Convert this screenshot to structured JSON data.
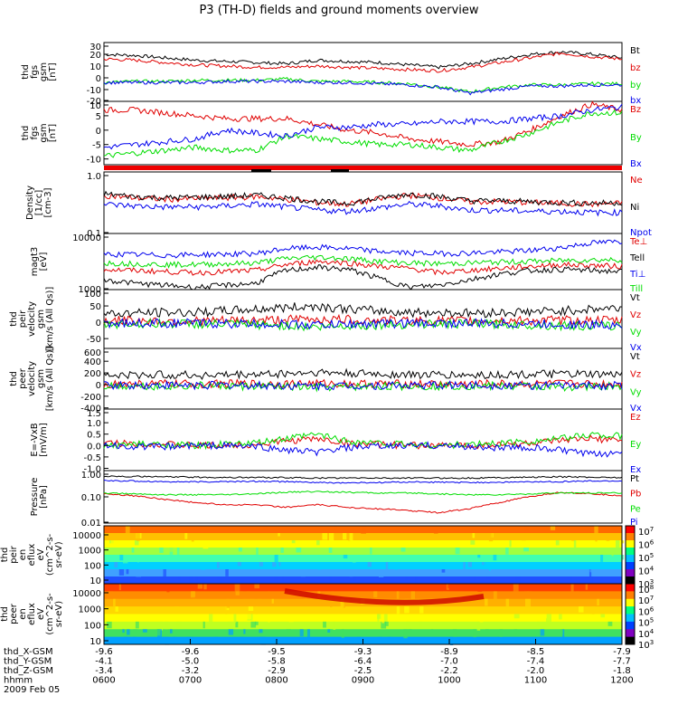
{
  "title": "P3 (TH-D) fields and ground moments overview",
  "colors": {
    "black": "#000000",
    "red": "#e00000",
    "green": "#00dd00",
    "blue": "#0000ee"
  },
  "chart_data": [
    {
      "type": "line",
      "id": "fgs_gsm_overview",
      "ylabel": [
        "thd",
        "fgs",
        "gsm",
        "[nT]"
      ],
      "yticks": [
        "30",
        "20",
        "10",
        "0",
        "-10",
        "-20"
      ],
      "ylim": [
        -20,
        30
      ],
      "series": [
        {
          "name": "Bt",
          "color": "black",
          "values": [
            20,
            19,
            17,
            15,
            14,
            13,
            12,
            15,
            14,
            13,
            11,
            9,
            12,
            16,
            20,
            22,
            20,
            17
          ]
        },
        {
          "name": "bz",
          "color": "red",
          "values": [
            16,
            15,
            13,
            11,
            10,
            9,
            9,
            10,
            9,
            8,
            7,
            6,
            9,
            13,
            17,
            21,
            18,
            16
          ]
        },
        {
          "name": "by",
          "color": "green",
          "values": [
            -4,
            -3,
            -3,
            -2,
            -2,
            -2,
            -1,
            -3,
            -3,
            -4,
            -5,
            -8,
            -12,
            -8,
            -6,
            -6,
            -5,
            -5
          ]
        },
        {
          "name": "bx",
          "color": "blue",
          "values": [
            -4,
            -4,
            -4,
            -4,
            -3,
            -3,
            -3,
            -4,
            -4,
            -5,
            -6,
            -8,
            -13,
            -10,
            -7,
            -7,
            -6,
            -6
          ]
        }
      ]
    },
    {
      "type": "line",
      "id": "fgs_gsm_zoom",
      "ylabel": [
        "thd",
        "fgs",
        "gsm",
        "[nT]"
      ],
      "yticks": [
        "10",
        "5",
        "0",
        "-5",
        "-10"
      ],
      "ylim": [
        -12,
        10
      ],
      "series": [
        {
          "name": "Bz",
          "color": "red",
          "values": [
            7,
            7,
            6,
            5,
            4,
            4,
            4,
            2,
            0,
            -1,
            -3,
            -4,
            -5,
            -4,
            0,
            5,
            9,
            7
          ]
        },
        {
          "name": "By",
          "color": "green",
          "values": [
            -9,
            -8,
            -7,
            -6,
            -7,
            -7,
            -2,
            -3,
            -4,
            -5,
            -5,
            -6,
            -7,
            -4,
            -1,
            3,
            6,
            6
          ]
        },
        {
          "name": "Bx",
          "color": "blue",
          "values": [
            -6,
            -5,
            -4,
            -3,
            0,
            -1,
            -2,
            1,
            1,
            2,
            2,
            3,
            3,
            3,
            4,
            5,
            7,
            8
          ]
        }
      ]
    },
    {
      "type": "line",
      "id": "density",
      "log": true,
      "ylabel": [
        "Density",
        "[1/cc]",
        "[cm-3]"
      ],
      "yticks": [
        "1.0",
        "0.1"
      ],
      "ylim": [
        0.1,
        1.0
      ],
      "series": [
        {
          "name": "Ne",
          "color": "red",
          "values": [
            0.42,
            0.38,
            0.36,
            0.37,
            0.38,
            0.4,
            0.36,
            0.32,
            0.3,
            0.36,
            0.42,
            0.38,
            0.33,
            0.33,
            0.32,
            0.31,
            0.3,
            0.31
          ]
        },
        {
          "name": "Ni",
          "color": "black",
          "values": [
            0.44,
            0.4,
            0.38,
            0.39,
            0.4,
            0.42,
            0.38,
            0.33,
            0.31,
            0.37,
            0.44,
            0.4,
            0.34,
            0.34,
            0.33,
            0.32,
            0.31,
            0.32
          ]
        },
        {
          "name": "Npot",
          "color": "blue",
          "values": [
            0.3,
            0.28,
            0.27,
            0.27,
            0.28,
            0.3,
            0.27,
            0.24,
            0.23,
            0.26,
            0.3,
            0.28,
            0.24,
            0.24,
            0.23,
            0.23,
            0.22,
            0.22
          ]
        }
      ]
    },
    {
      "type": "line",
      "id": "magt3",
      "log": true,
      "ylabel": [
        "magt3",
        "[eV]"
      ],
      "yticks": [
        "10000",
        "1000"
      ],
      "ylim": [
        1000,
        10000
      ],
      "series": [
        {
          "name": "Te⊥",
          "color": "red",
          "values": [
            2300,
            2200,
            2100,
            2000,
            2100,
            2200,
            2800,
            3200,
            3000,
            2600,
            2400,
            2000,
            2200,
            2400,
            2600,
            2800,
            2700,
            2600
          ]
        },
        {
          "name": "Tell",
          "color": "black",
          "values": [
            1500,
            1300,
            1200,
            1100,
            1200,
            1300,
            2200,
            2500,
            2300,
            1600,
            1100,
            1200,
            1500,
            1900,
            2200,
            2300,
            2200,
            2100
          ]
        },
        {
          "name": "Ti⊥",
          "color": "blue",
          "values": [
            4300,
            4200,
            4100,
            4200,
            4300,
            4400,
            5400,
            5700,
            5400,
            4800,
            4500,
            4400,
            4500,
            4700,
            5000,
            5600,
            6800,
            7200
          ]
        },
        {
          "name": "Till",
          "color": "green",
          "values": [
            3000,
            2900,
            2800,
            2800,
            2900,
            3000,
            3600,
            3800,
            3600,
            3200,
            3000,
            2900,
            3000,
            3100,
            3200,
            3300,
            3400,
            3400
          ]
        }
      ]
    },
    {
      "type": "line",
      "id": "peir_velocity",
      "ylabel": [
        "thd",
        "peir",
        "velocity",
        "gsm",
        "[km/s (All Qs)]"
      ],
      "yticks": [
        "100",
        "50",
        "0",
        "-50"
      ],
      "ylim": [
        -80,
        100
      ],
      "series": [
        {
          "name": "Vt",
          "color": "black",
          "values": [
            25,
            28,
            30,
            30,
            35,
            40,
            45,
            50,
            40,
            35,
            30,
            30,
            28,
            30,
            32,
            35,
            40,
            45
          ]
        },
        {
          "name": "Vz",
          "color": "red",
          "values": [
            5,
            5,
            4,
            4,
            5,
            6,
            8,
            10,
            8,
            6,
            5,
            5,
            4,
            5,
            5,
            6,
            6,
            5
          ]
        },
        {
          "name": "Vy",
          "color": "green",
          "values": [
            -5,
            -5,
            -4,
            -5,
            -6,
            -8,
            -10,
            -15,
            -10,
            -8,
            -6,
            -5,
            -5,
            -6,
            -8,
            -10,
            -12,
            -10
          ]
        },
        {
          "name": "Vx",
          "color": "blue",
          "values": [
            -2,
            -2,
            -3,
            -3,
            -4,
            -5,
            -6,
            -8,
            -6,
            -4,
            -3,
            -3,
            -3,
            -4,
            -5,
            -6,
            -8,
            -6
          ]
        }
      ]
    },
    {
      "type": "line",
      "id": "peer_velocity",
      "ylabel": [
        "thd",
        "peer",
        "velocity",
        "gsm",
        "[km/s (All Qs)]"
      ],
      "yticks": [
        "600",
        "400",
        "200",
        "0",
        "-200",
        "-400"
      ],
      "ylim": [
        -420,
        620
      ],
      "series": [
        {
          "name": "Vt",
          "color": "black",
          "values": [
            150,
            160,
            170,
            160,
            165,
            175,
            190,
            210,
            190,
            180,
            170,
            165,
            160,
            170,
            175,
            180,
            170,
            165
          ]
        },
        {
          "name": "Vz",
          "color": "red",
          "values": [
            10,
            10,
            12,
            10,
            12,
            14,
            16,
            18,
            14,
            12,
            10,
            10,
            10,
            12,
            12,
            14,
            12,
            10
          ]
        },
        {
          "name": "Vy",
          "color": "green",
          "values": [
            -20,
            -20,
            -25,
            -20,
            -25,
            -30,
            -40,
            -50,
            -40,
            -30,
            -25,
            -25,
            -20,
            -25,
            -30,
            -40,
            -35,
            -30
          ]
        },
        {
          "name": "Vx",
          "color": "blue",
          "values": [
            -10,
            -10,
            -12,
            -10,
            -12,
            -15,
            -20,
            -25,
            -20,
            -15,
            -12,
            -12,
            -10,
            -12,
            -15,
            -20,
            -18,
            -15
          ]
        }
      ]
    },
    {
      "type": "line",
      "id": "efield",
      "ylabel": [
        "E=-VxB",
        "[mV/m]"
      ],
      "yticks": [
        "1.5",
        "1.0",
        "0.5",
        "0.0",
        "-0.5",
        "-1.0"
      ],
      "ylim": [
        -1.1,
        1.6
      ],
      "series": [
        {
          "name": "Ez",
          "color": "red",
          "values": [
            0.1,
            0.1,
            0.05,
            0.0,
            0.0,
            0.05,
            0.2,
            0.3,
            0.1,
            0.05,
            0.0,
            0.0,
            0.0,
            0.05,
            0.1,
            0.2,
            0.3,
            0.2
          ]
        },
        {
          "name": "Ey",
          "color": "green",
          "values": [
            0.0,
            0.05,
            0.05,
            0.0,
            0.05,
            0.1,
            0.3,
            0.5,
            0.2,
            0.1,
            0.05,
            0.0,
            0.05,
            0.1,
            0.2,
            0.3,
            0.5,
            0.4
          ]
        },
        {
          "name": "Ex",
          "color": "blue",
          "values": [
            0.0,
            -0.05,
            -0.05,
            0.0,
            0.0,
            -0.05,
            -0.2,
            -0.3,
            -0.1,
            -0.05,
            0.0,
            0.0,
            -0.05,
            -0.1,
            -0.1,
            -0.2,
            -0.4,
            -0.3
          ]
        }
      ]
    },
    {
      "type": "line",
      "id": "pressure",
      "log": true,
      "ylabel": [
        "Pressure",
        "[nPa]"
      ],
      "yticks": [
        "1.00",
        "0.10",
        "0.01"
      ],
      "ylim": [
        0.01,
        1.0
      ],
      "series": [
        {
          "name": "Pt",
          "color": "black",
          "values": [
            0.62,
            0.6,
            0.58,
            0.56,
            0.55,
            0.55,
            0.54,
            0.52,
            0.52,
            0.52,
            0.52,
            0.52,
            0.52,
            0.54,
            0.56,
            0.58,
            0.56,
            0.55
          ]
        },
        {
          "name": "Pb",
          "color": "red",
          "values": [
            0.13,
            0.11,
            0.08,
            0.06,
            0.05,
            0.05,
            0.04,
            0.05,
            0.04,
            0.035,
            0.03,
            0.025,
            0.035,
            0.06,
            0.1,
            0.15,
            0.13,
            0.11
          ]
        },
        {
          "name": "Pe",
          "color": "green",
          "values": [
            0.14,
            0.13,
            0.12,
            0.12,
            0.12,
            0.13,
            0.15,
            0.16,
            0.15,
            0.14,
            0.14,
            0.13,
            0.12,
            0.12,
            0.13,
            0.14,
            0.14,
            0.14
          ]
        },
        {
          "name": "Pi",
          "color": "blue",
          "values": [
            0.42,
            0.4,
            0.38,
            0.37,
            0.38,
            0.39,
            0.38,
            0.35,
            0.34,
            0.35,
            0.37,
            0.36,
            0.35,
            0.36,
            0.37,
            0.38,
            0.4,
            0.4
          ]
        }
      ]
    },
    {
      "type": "heatmap",
      "id": "peir_en_eflux",
      "ylabel": [
        "thd",
        "peir",
        "en",
        "eflux",
        "eV",
        "(cm^2-s-",
        "sr-eV)"
      ],
      "yticks": [
        "10000",
        "1000",
        "100",
        "10"
      ],
      "colorbar_ticks": [
        "10^7",
        "10^6",
        "10^5",
        "10^4",
        "10^3"
      ]
    },
    {
      "type": "heatmap",
      "id": "peer_en_eflux",
      "ylabel": [
        "thd",
        "peer",
        "en",
        "eflux",
        "eV",
        "(cm^2-s-",
        "sr-eV)"
      ],
      "yticks": [
        "10000",
        "1000",
        "100",
        "10"
      ],
      "colorbar_ticks": [
        "10^8",
        "10^7",
        "10^6",
        "10^5",
        "10^4",
        "10^3"
      ]
    }
  ],
  "ephemeris": {
    "labels": [
      "thd_X-GSM",
      "thd_Y-GSM",
      "thd_Z-GSM",
      "hhmm",
      "2009 Feb 05"
    ],
    "columns": [
      {
        "x": "-9.6",
        "y": "-4.1",
        "z": "-3.4",
        "t": "0600"
      },
      {
        "x": "-9.6",
        "y": "-5.0",
        "z": "-3.2",
        "t": "0700"
      },
      {
        "x": "-9.5",
        "y": "-5.8",
        "z": "-2.9",
        "t": "0800"
      },
      {
        "x": "-9.3",
        "y": "-6.4",
        "z": "-2.5",
        "t": "0900"
      },
      {
        "x": "-8.9",
        "y": "-7.0",
        "z": "-2.2",
        "t": "1000"
      },
      {
        "x": "-8.5",
        "y": "-7.4",
        "z": "-2.0",
        "t": "1100"
      },
      {
        "x": "-7.9",
        "y": "-7.7",
        "z": "-1.8",
        "t": "1200"
      }
    ]
  }
}
